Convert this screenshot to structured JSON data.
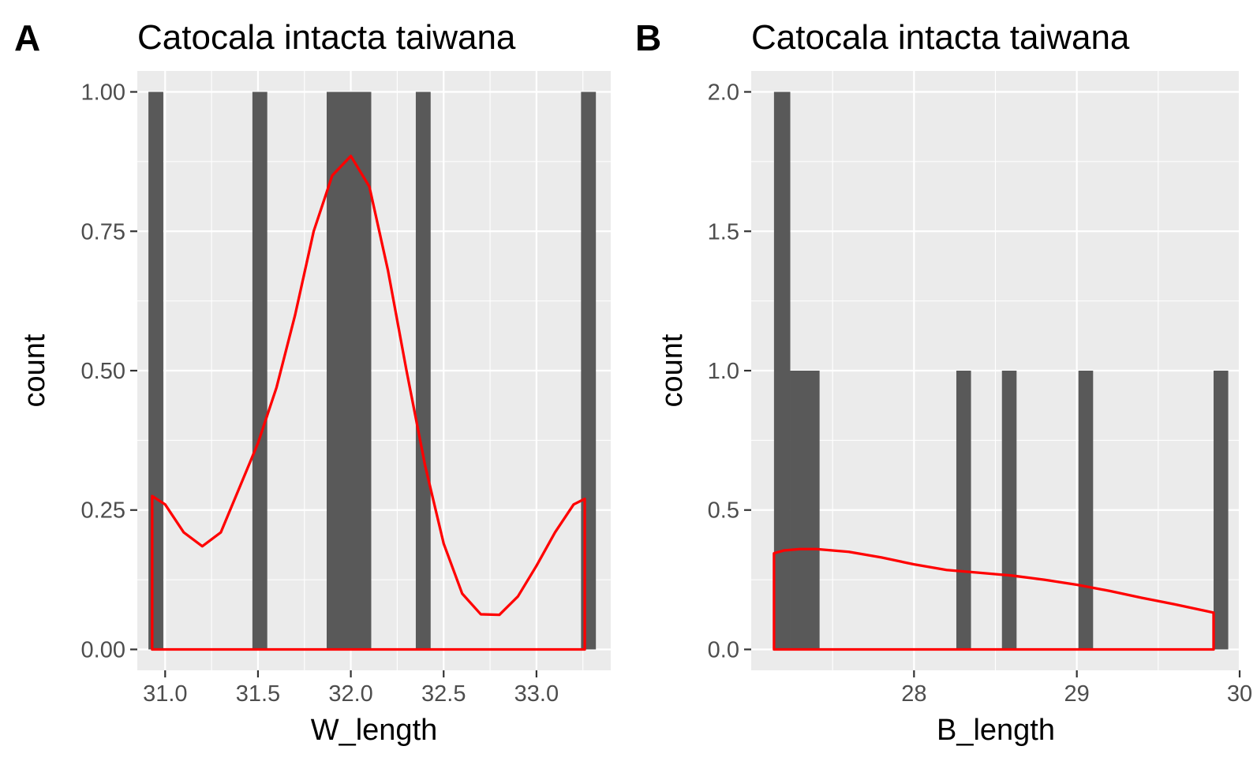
{
  "chart_data": [
    {
      "type": "bar",
      "tag": "A",
      "title": "Catocala intacta taiwana",
      "xlabel": "W_length",
      "ylabel": "count",
      "xlim": [
        30.85,
        33.4
      ],
      "ylim": [
        -0.0375,
        1.0375
      ],
      "x_ticks": [
        31.0,
        31.5,
        32.0,
        32.5,
        33.0
      ],
      "x_tick_labels": [
        "31.0",
        "31.5",
        "32.0",
        "32.5",
        "33.0"
      ],
      "y_ticks": [
        0,
        0.25,
        0.5,
        0.75,
        1.0
      ],
      "y_tick_labels": [
        "0.00",
        "0.25",
        "0.50",
        "0.75",
        "1.00"
      ],
      "grid": true,
      "bar_color": "#595959",
      "bars": [
        {
          "x0": 30.91,
          "x1": 30.99,
          "count": 1
        },
        {
          "x0": 31.47,
          "x1": 31.55,
          "count": 1
        },
        {
          "x0": 31.87,
          "x1": 32.11,
          "count": 1
        },
        {
          "x0": 32.35,
          "x1": 32.43,
          "count": 1
        },
        {
          "x0": 33.24,
          "x1": 33.32,
          "count": 1
        }
      ],
      "density_color": "#ff0000",
      "density_curve": {
        "x": [
          30.93,
          31.0,
          31.1,
          31.2,
          31.3,
          31.4,
          31.5,
          31.6,
          31.7,
          31.8,
          31.9,
          32.0,
          32.1,
          32.2,
          32.3,
          32.4,
          32.5,
          32.6,
          32.7,
          32.8,
          32.9,
          33.0,
          33.1,
          33.2,
          33.26
        ],
        "y": [
          0.275,
          0.26,
          0.21,
          0.185,
          0.21,
          0.29,
          0.37,
          0.47,
          0.6,
          0.75,
          0.85,
          0.885,
          0.83,
          0.68,
          0.5,
          0.33,
          0.19,
          0.1,
          0.063,
          0.062,
          0.095,
          0.15,
          0.21,
          0.26,
          0.27
        ]
      }
    },
    {
      "type": "bar",
      "tag": "B",
      "title": "Catocala intacta taiwana",
      "xlabel": "B_length",
      "ylabel": "count",
      "xlim": [
        27.0,
        30.0
      ],
      "ylim": [
        -0.075,
        2.075
      ],
      "x_ticks": [
        28,
        29,
        30
      ],
      "x_tick_labels": [
        "28",
        "29",
        "30"
      ],
      "y_ticks": [
        0,
        0.5,
        1.0,
        1.5,
        2.0
      ],
      "y_tick_labels": [
        "0.0",
        "0.5",
        "1.0",
        "1.5",
        "2.0"
      ],
      "grid": true,
      "bar_color": "#595959",
      "bars": [
        {
          "x0": 27.14,
          "x1": 27.24,
          "count": 2
        },
        {
          "x0": 27.24,
          "x1": 27.42,
          "count": 1
        },
        {
          "x0": 28.26,
          "x1": 28.35,
          "count": 1
        },
        {
          "x0": 28.54,
          "x1": 28.63,
          "count": 1
        },
        {
          "x0": 29.01,
          "x1": 29.1,
          "count": 1
        },
        {
          "x0": 29.84,
          "x1": 29.93,
          "count": 1
        }
      ],
      "density_color": "#ff0000",
      "density_curve": {
        "x": [
          27.14,
          27.2,
          27.3,
          27.4,
          27.6,
          27.8,
          28.0,
          28.2,
          28.4,
          28.6,
          28.8,
          29.0,
          29.2,
          29.4,
          29.6,
          29.84
        ],
        "y": [
          0.345,
          0.355,
          0.36,
          0.36,
          0.35,
          0.33,
          0.305,
          0.285,
          0.275,
          0.265,
          0.25,
          0.232,
          0.21,
          0.185,
          0.162,
          0.132
        ]
      }
    }
  ]
}
